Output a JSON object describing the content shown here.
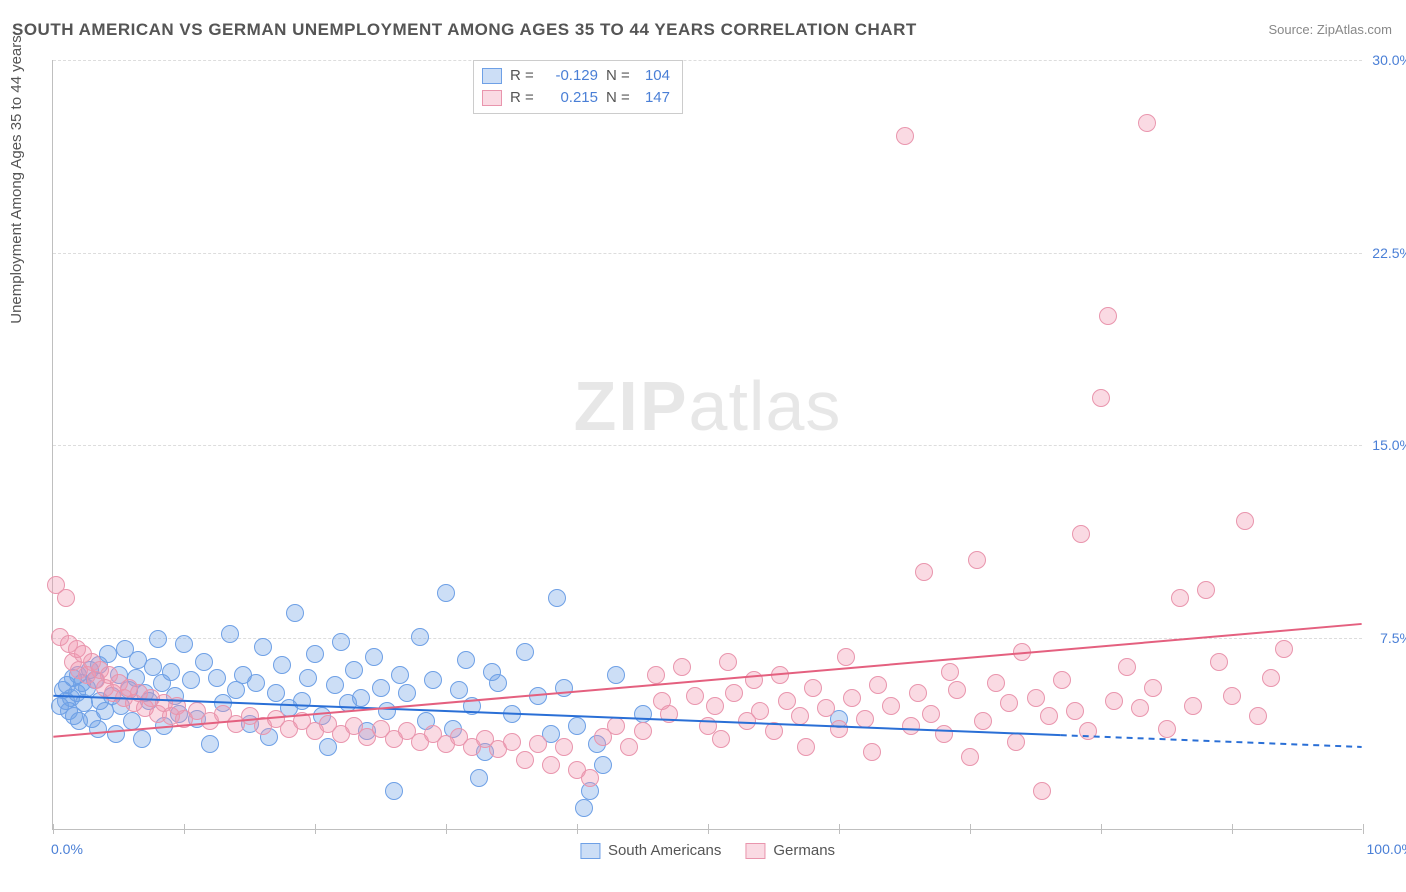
{
  "title": "SOUTH AMERICAN VS GERMAN UNEMPLOYMENT AMONG AGES 35 TO 44 YEARS CORRELATION CHART",
  "source_label": "Source: ",
  "source_name": "ZipAtlas.com",
  "y_axis_title": "Unemployment Among Ages 35 to 44 years",
  "watermark_bold": "ZIP",
  "watermark_light": "atlas",
  "chart": {
    "type": "scatter",
    "xlim": [
      0,
      100
    ],
    "ylim": [
      0,
      30
    ],
    "x_tick_count": 11,
    "x_label_min": "0.0%",
    "x_label_max": "100.0%",
    "y_ticks": [
      7.5,
      15.0,
      22.5,
      30.0
    ],
    "y_tick_labels": [
      "7.5%",
      "15.0%",
      "22.5%",
      "30.0%"
    ],
    "grid_color": "#dddddd",
    "axis_color": "#bfbfbf",
    "tick_label_color": "#4a7fd6",
    "background_color": "#ffffff",
    "marker_radius": 9,
    "marker_border_width": 1.5,
    "series": [
      {
        "name": "South Americans",
        "color_fill": "rgba(110,160,230,0.35)",
        "color_stroke": "#6ea0e6",
        "trend": {
          "y_at_x0": 5.2,
          "y_at_x100": 3.2,
          "x_solid_end": 77,
          "line_color": "#2a6fd6",
          "line_width": 2
        },
        "stats": {
          "R": "-0.129",
          "N": "104"
        },
        "points": [
          [
            0.5,
            4.8
          ],
          [
            0.8,
            5.4
          ],
          [
            1.0,
            5.0
          ],
          [
            1.1,
            5.6
          ],
          [
            1.2,
            4.6
          ],
          [
            1.4,
            5.1
          ],
          [
            1.5,
            5.9
          ],
          [
            1.6,
            4.4
          ],
          [
            1.8,
            5.3
          ],
          [
            1.9,
            6.0
          ],
          [
            2.0,
            4.2
          ],
          [
            2.2,
            5.7
          ],
          [
            2.4,
            4.9
          ],
          [
            2.6,
            5.5
          ],
          [
            2.8,
            6.2
          ],
          [
            3.0,
            4.3
          ],
          [
            3.2,
            5.8
          ],
          [
            3.4,
            3.9
          ],
          [
            3.5,
            6.4
          ],
          [
            3.6,
            5.0
          ],
          [
            4.0,
            4.6
          ],
          [
            4.2,
            6.8
          ],
          [
            4.5,
            5.2
          ],
          [
            4.8,
            3.7
          ],
          [
            5.0,
            6.0
          ],
          [
            5.2,
            4.8
          ],
          [
            5.5,
            7.0
          ],
          [
            5.8,
            5.4
          ],
          [
            6.0,
            4.2
          ],
          [
            6.3,
            5.9
          ],
          [
            6.5,
            6.6
          ],
          [
            6.8,
            3.5
          ],
          [
            7.0,
            5.3
          ],
          [
            7.3,
            5.0
          ],
          [
            7.6,
            6.3
          ],
          [
            8.0,
            7.4
          ],
          [
            8.3,
            5.7
          ],
          [
            8.5,
            4.0
          ],
          [
            9.0,
            6.1
          ],
          [
            9.3,
            5.2
          ],
          [
            9.6,
            4.5
          ],
          [
            10.0,
            7.2
          ],
          [
            10.5,
            5.8
          ],
          [
            11.0,
            4.3
          ],
          [
            11.5,
            6.5
          ],
          [
            12.0,
            3.3
          ],
          [
            12.5,
            5.9
          ],
          [
            13.0,
            4.9
          ],
          [
            13.5,
            7.6
          ],
          [
            14.0,
            5.4
          ],
          [
            14.5,
            6.0
          ],
          [
            15.0,
            4.1
          ],
          [
            15.5,
            5.7
          ],
          [
            16.0,
            7.1
          ],
          [
            16.5,
            3.6
          ],
          [
            17.0,
            5.3
          ],
          [
            17.5,
            6.4
          ],
          [
            18.0,
            4.7
          ],
          [
            18.5,
            8.4
          ],
          [
            19.0,
            5.0
          ],
          [
            19.5,
            5.9
          ],
          [
            20.0,
            6.8
          ],
          [
            20.5,
            4.4
          ],
          [
            21.0,
            3.2
          ],
          [
            21.5,
            5.6
          ],
          [
            22.0,
            7.3
          ],
          [
            22.5,
            4.9
          ],
          [
            23.0,
            6.2
          ],
          [
            23.5,
            5.1
          ],
          [
            24.0,
            3.8
          ],
          [
            24.5,
            6.7
          ],
          [
            25.0,
            5.5
          ],
          [
            25.5,
            4.6
          ],
          [
            26.0,
            1.5
          ],
          [
            26.5,
            6.0
          ],
          [
            27.0,
            5.3
          ],
          [
            28.0,
            7.5
          ],
          [
            28.5,
            4.2
          ],
          [
            29.0,
            5.8
          ],
          [
            30.0,
            9.2
          ],
          [
            30.5,
            3.9
          ],
          [
            31.0,
            5.4
          ],
          [
            31.5,
            6.6
          ],
          [
            32.0,
            4.8
          ],
          [
            32.5,
            2.0
          ],
          [
            33.0,
            3.0
          ],
          [
            33.5,
            6.1
          ],
          [
            34.0,
            5.7
          ],
          [
            35.0,
            4.5
          ],
          [
            36.0,
            6.9
          ],
          [
            37.0,
            5.2
          ],
          [
            38.0,
            3.7
          ],
          [
            38.5,
            9.0
          ],
          [
            39.0,
            5.5
          ],
          [
            40.0,
            4.0
          ],
          [
            40.5,
            0.8
          ],
          [
            41.0,
            1.5
          ],
          [
            41.5,
            3.3
          ],
          [
            42.0,
            2.5
          ],
          [
            43.0,
            6.0
          ],
          [
            45.0,
            4.5
          ],
          [
            60.0,
            4.3
          ]
        ]
      },
      {
        "name": "Germans",
        "color_fill": "rgba(240,150,175,0.35)",
        "color_stroke": "#e995ad",
        "trend": {
          "y_at_x0": 3.6,
          "y_at_x100": 8.0,
          "x_solid_end": 100,
          "line_color": "#e4607f",
          "line_width": 2
        },
        "stats": {
          "R": "0.215",
          "N": "147"
        },
        "points": [
          [
            0.2,
            9.5
          ],
          [
            0.5,
            7.5
          ],
          [
            1.0,
            9.0
          ],
          [
            1.2,
            7.2
          ],
          [
            1.5,
            6.5
          ],
          [
            1.8,
            7.0
          ],
          [
            2.0,
            6.2
          ],
          [
            2.3,
            6.8
          ],
          [
            2.6,
            6.0
          ],
          [
            3.0,
            6.5
          ],
          [
            3.3,
            5.8
          ],
          [
            3.6,
            6.2
          ],
          [
            4.0,
            5.5
          ],
          [
            4.3,
            6.0
          ],
          [
            4.6,
            5.3
          ],
          [
            5.0,
            5.7
          ],
          [
            5.4,
            5.1
          ],
          [
            5.8,
            5.5
          ],
          [
            6.2,
            4.9
          ],
          [
            6.6,
            5.3
          ],
          [
            7.0,
            4.7
          ],
          [
            7.5,
            5.1
          ],
          [
            8.0,
            4.5
          ],
          [
            8.5,
            4.9
          ],
          [
            9.0,
            4.4
          ],
          [
            9.5,
            4.8
          ],
          [
            10.0,
            4.3
          ],
          [
            11.0,
            4.6
          ],
          [
            12.0,
            4.2
          ],
          [
            13.0,
            4.5
          ],
          [
            14.0,
            4.1
          ],
          [
            15.0,
            4.4
          ],
          [
            16.0,
            4.0
          ],
          [
            17.0,
            4.3
          ],
          [
            18.0,
            3.9
          ],
          [
            19.0,
            4.2
          ],
          [
            20.0,
            3.8
          ],
          [
            21.0,
            4.1
          ],
          [
            22.0,
            3.7
          ],
          [
            23.0,
            4.0
          ],
          [
            24.0,
            3.6
          ],
          [
            25.0,
            3.9
          ],
          [
            26.0,
            3.5
          ],
          [
            27.0,
            3.8
          ],
          [
            28.0,
            3.4
          ],
          [
            29.0,
            3.7
          ],
          [
            30.0,
            3.3
          ],
          [
            31.0,
            3.6
          ],
          [
            32.0,
            3.2
          ],
          [
            33.0,
            3.5
          ],
          [
            34.0,
            3.1
          ],
          [
            35.0,
            3.4
          ],
          [
            36.0,
            2.7
          ],
          [
            37.0,
            3.3
          ],
          [
            38.0,
            2.5
          ],
          [
            39.0,
            3.2
          ],
          [
            40.0,
            2.3
          ],
          [
            41.0,
            2.0
          ],
          [
            42.0,
            3.6
          ],
          [
            43.0,
            4.0
          ],
          [
            44.0,
            3.2
          ],
          [
            45.0,
            3.8
          ],
          [
            46.0,
            6.0
          ],
          [
            46.5,
            5.0
          ],
          [
            47.0,
            4.5
          ],
          [
            48.0,
            6.3
          ],
          [
            49.0,
            5.2
          ],
          [
            50.0,
            4.0
          ],
          [
            50.5,
            4.8
          ],
          [
            51.0,
            3.5
          ],
          [
            51.5,
            6.5
          ],
          [
            52.0,
            5.3
          ],
          [
            53.0,
            4.2
          ],
          [
            53.5,
            5.8
          ],
          [
            54.0,
            4.6
          ],
          [
            55.0,
            3.8
          ],
          [
            55.5,
            6.0
          ],
          [
            56.0,
            5.0
          ],
          [
            57.0,
            4.4
          ],
          [
            57.5,
            3.2
          ],
          [
            58.0,
            5.5
          ],
          [
            59.0,
            4.7
          ],
          [
            60.0,
            3.9
          ],
          [
            60.5,
            6.7
          ],
          [
            61.0,
            5.1
          ],
          [
            62.0,
            4.3
          ],
          [
            62.5,
            3.0
          ],
          [
            63.0,
            5.6
          ],
          [
            64.0,
            4.8
          ],
          [
            65.0,
            27.0
          ],
          [
            65.5,
            4.0
          ],
          [
            66.0,
            5.3
          ],
          [
            66.5,
            10.0
          ],
          [
            67.0,
            4.5
          ],
          [
            68.0,
            3.7
          ],
          [
            68.5,
            6.1
          ],
          [
            69.0,
            5.4
          ],
          [
            70.0,
            2.8
          ],
          [
            70.5,
            10.5
          ],
          [
            71.0,
            4.2
          ],
          [
            72.0,
            5.7
          ],
          [
            73.0,
            4.9
          ],
          [
            73.5,
            3.4
          ],
          [
            74.0,
            6.9
          ],
          [
            75.0,
            5.1
          ],
          [
            75.5,
            1.5
          ],
          [
            76.0,
            4.4
          ],
          [
            77.0,
            5.8
          ],
          [
            78.0,
            4.6
          ],
          [
            78.5,
            11.5
          ],
          [
            79.0,
            3.8
          ],
          [
            80.0,
            16.8
          ],
          [
            80.5,
            20.0
          ],
          [
            81.0,
            5.0
          ],
          [
            82.0,
            6.3
          ],
          [
            83.0,
            4.7
          ],
          [
            83.5,
            27.5
          ],
          [
            84.0,
            5.5
          ],
          [
            85.0,
            3.9
          ],
          [
            86.0,
            9.0
          ],
          [
            87.0,
            4.8
          ],
          [
            88.0,
            9.3
          ],
          [
            89.0,
            6.5
          ],
          [
            90.0,
            5.2
          ],
          [
            91.0,
            12.0
          ],
          [
            92.0,
            4.4
          ],
          [
            93.0,
            5.9
          ],
          [
            94.0,
            7.0
          ]
        ]
      }
    ]
  },
  "legend_top": {
    "R_label": "R =",
    "N_label": "N ="
  },
  "legend_bottom": [
    {
      "label": "South Americans"
    },
    {
      "label": "Germans"
    }
  ]
}
